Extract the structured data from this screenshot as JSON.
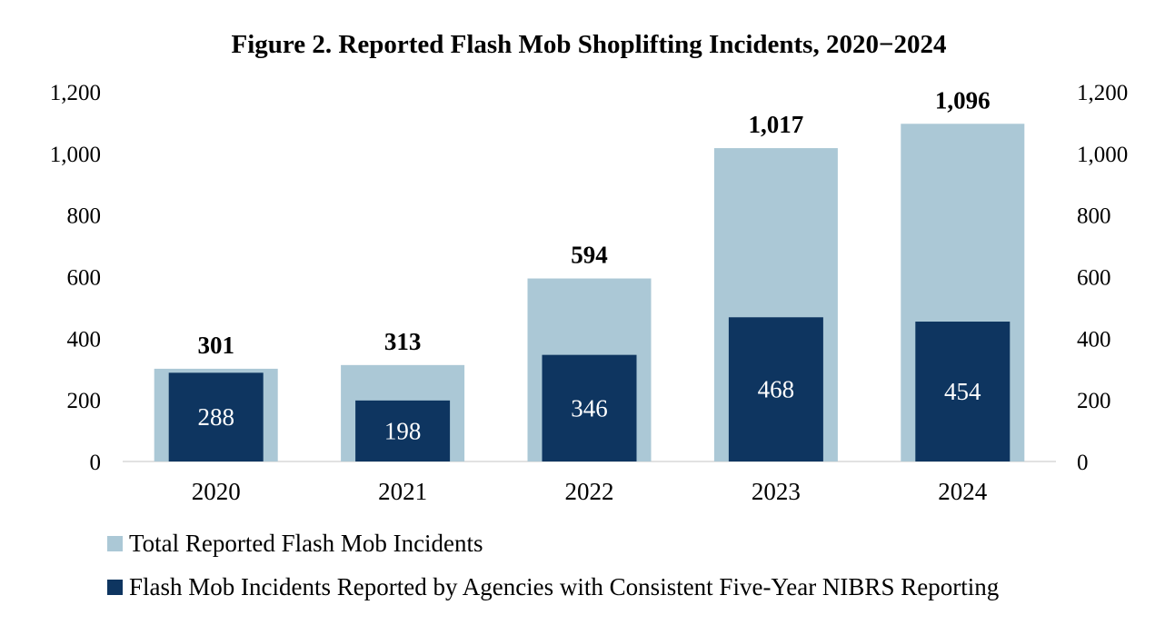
{
  "chart_data": {
    "type": "bar",
    "title": "Figure 2. Reported Flash Mob Shoplifting Incidents, 2020−2024",
    "categories": [
      "2020",
      "2021",
      "2022",
      "2023",
      "2024"
    ],
    "series": [
      {
        "name": "Total Reported Flash Mob Incidents",
        "values": [
          301,
          313,
          594,
          1017,
          1096
        ],
        "color": "#abc8d6"
      },
      {
        "name": "Flash Mob Incidents Reported by Agencies with Consistent Five-Year NIBRS Reporting",
        "values": [
          288,
          198,
          346,
          468,
          454
        ],
        "color": "#0e3560"
      }
    ],
    "value_labels": {
      "total": [
        "301",
        "313",
        "594",
        "1,017",
        "1,096"
      ],
      "consistent": [
        "288",
        "198",
        "346",
        "468",
        "454"
      ]
    },
    "ylim": [
      0,
      1200
    ],
    "y_ticks": [
      0,
      200,
      400,
      600,
      800,
      1000,
      1200
    ],
    "y_tick_labels": [
      "0",
      "200",
      "400",
      "600",
      "800",
      "1,000",
      "1,200"
    ],
    "secondary_axis": true,
    "grid": false,
    "legend_position": "bottom-left",
    "xlabel": "",
    "ylabel": ""
  }
}
